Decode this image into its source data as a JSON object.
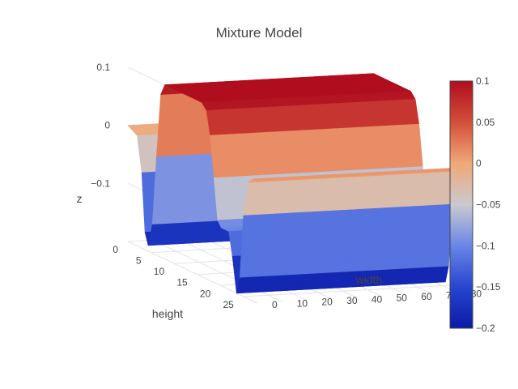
{
  "chart_data": {
    "type": "surface",
    "title": "Mixture Model",
    "xlabel": "width",
    "ylabel": "height",
    "zlabel": "z",
    "x_ticks": [
      "0",
      "10",
      "20",
      "30",
      "40",
      "50",
      "60",
      "70",
      "80"
    ],
    "x_tick_values": [
      0,
      10,
      20,
      30,
      40,
      50,
      60,
      70,
      80
    ],
    "y_ticks": [
      "0",
      "5",
      "10",
      "15",
      "20",
      "25"
    ],
    "y_tick_values": [
      0,
      5,
      10,
      15,
      20,
      25
    ],
    "z_ticks": [
      "0.1",
      "0",
      "−0.1"
    ],
    "z_tick_values": [
      0.1,
      0,
      -0.1
    ],
    "xlim": [
      0,
      84
    ],
    "ylim": [
      0,
      28
    ],
    "zlim": [
      -0.2,
      0.1
    ],
    "profile": {
      "height": [
        0,
        2,
        3,
        3.7,
        4.4,
        5.3,
        6.2,
        7.1,
        8,
        9.5,
        12,
        14,
        16,
        17,
        17.8,
        18.6,
        19.4,
        20.2,
        21,
        21.8,
        22.6,
        23.5,
        24.2,
        25,
        26,
        27,
        28
      ],
      "z": [
        0,
        -0.01,
        -0.07,
        -0.17,
        -0.19,
        -0.15,
        -0.03,
        0.08,
        0.1,
        0.1,
        0.1,
        0.1,
        0.1,
        0.09,
        0.05,
        -0.02,
        -0.09,
        -0.1,
        -0.1,
        -0.1,
        -0.14,
        -0.2,
        -0.17,
        -0.06,
        0,
        0.01,
        0.01
      ]
    },
    "colorbar": {
      "ticks": [
        "0.1",
        "0.05",
        "0",
        "−0.05",
        "−0.1",
        "−0.15",
        "−0.2"
      ],
      "tick_values": [
        0.1,
        0.05,
        0,
        -0.05,
        -0.1,
        -0.15,
        -0.2
      ],
      "colorscale": [
        "#0a1aa5",
        "#2746cf",
        "#6a86e6",
        "#c9c9cf",
        "#f0a878",
        "#d44f3a",
        "#b00e1f"
      ]
    }
  }
}
